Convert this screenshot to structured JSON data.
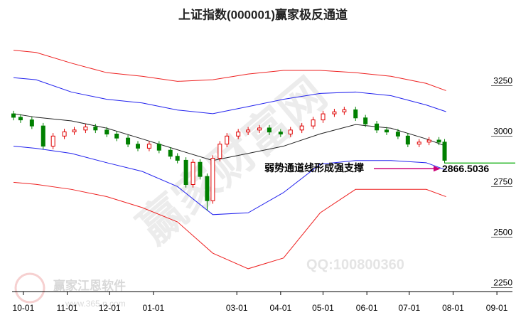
{
  "chart_data": {
    "type": "candlestick",
    "title": "上证指数(000001)赢家极反通道",
    "xlim": [
      -8,
      346
    ],
    "ylim": [
      2230,
      3540
    ],
    "xticks": [
      {
        "value": 0,
        "label": "10-01"
      },
      {
        "value": 31,
        "label": "11-01"
      },
      {
        "value": 61,
        "label": "12-01"
      },
      {
        "value": 92,
        "label": "01-01"
      },
      {
        "value": 151,
        "label": "03-01"
      },
      {
        "value": 182,
        "label": "04-01"
      },
      {
        "value": 212,
        "label": "05-01"
      },
      {
        "value": 243,
        "label": "06-01"
      },
      {
        "value": 273,
        "label": "07-01"
      },
      {
        "value": 304,
        "label": "08-01"
      },
      {
        "value": 335,
        "label": "09-01"
      }
    ],
    "yticks": [
      2250,
      2500,
      2750,
      3000,
      3250
    ],
    "grid": false,
    "up_color": "#e00000",
    "down_color": "#008000",
    "candles": {
      "x": [
        -7,
        -2,
        6,
        14,
        21,
        29,
        36,
        44,
        51,
        59,
        66,
        74,
        81,
        89,
        96,
        104,
        109,
        115,
        120,
        125,
        130,
        134,
        139,
        144,
        152,
        159,
        167,
        174,
        182,
        189,
        197,
        205,
        212,
        220,
        227,
        235,
        242,
        250,
        257,
        265,
        272,
        280,
        287,
        294,
        298
      ],
      "open": [
        3110,
        3093,
        3080,
        3050,
        2950,
        3000,
        3021,
        3030,
        3045,
        3030,
        3010,
        2990,
        2960,
        2940,
        2960,
        2930,
        2900,
        2880,
        2760,
        2870,
        2800,
        2680,
        2890,
        2960,
        3000,
        3020,
        3030,
        3040,
        3020,
        3010,
        3030,
        3050,
        3080,
        3110,
        3120,
        3130,
        3090,
        3060,
        3030,
        3020,
        3000,
        2960,
        2970,
        2980,
        2970
      ],
      "close": [
        3093,
        3080,
        3050,
        2950,
        3000,
        3021,
        3030,
        3045,
        3030,
        3010,
        2990,
        2960,
        2940,
        2960,
        2930,
        2900,
        2880,
        2760,
        2870,
        2800,
        2680,
        2890,
        2960,
        3000,
        3020,
        3030,
        3040,
        3020,
        3010,
        3030,
        3050,
        3080,
        3110,
        3120,
        3130,
        3090,
        3060,
        3030,
        3020,
        3000,
        2960,
        2970,
        2980,
        2970,
        2880
      ],
      "high": [
        3125,
        3108,
        3095,
        3065,
        3015,
        3036,
        3045,
        3060,
        3060,
        3045,
        3025,
        3005,
        2975,
        2975,
        2975,
        2945,
        2915,
        2895,
        2885,
        2885,
        2815,
        2905,
        2975,
        3015,
        3035,
        3045,
        3055,
        3055,
        3035,
        3045,
        3065,
        3095,
        3125,
        3135,
        3145,
        3145,
        3105,
        3075,
        3045,
        3035,
        3015,
        2985,
        2995,
        2995,
        2985
      ],
      "low": [
        3078,
        3065,
        3035,
        2935,
        2935,
        2985,
        3006,
        3015,
        3015,
        2995,
        2975,
        2945,
        2925,
        2925,
        2915,
        2885,
        2865,
        2745,
        2745,
        2785,
        2630,
        2665,
        2875,
        2945,
        2985,
        3005,
        3015,
        3005,
        2995,
        2995,
        3015,
        3035,
        3065,
        3095,
        3105,
        3075,
        3045,
        3015,
        3005,
        2985,
        2945,
        2945,
        2955,
        2955,
        2865
      ]
    },
    "line_x": [
      -7,
      9,
      34,
      59,
      84,
      109,
      134,
      159,
      184,
      210,
      235,
      260,
      285,
      299
    ],
    "series": [
      {
        "name": "upper-red",
        "color": "#ee2222",
        "values": [
          3425,
          3414,
          3361,
          3314,
          3296,
          3271,
          3279,
          3307,
          3325,
          3325,
          3314,
          3296,
          3261,
          3225
        ]
      },
      {
        "name": "upper-blue",
        "color": "#2222ee",
        "values": [
          3289,
          3279,
          3218,
          3182,
          3164,
          3129,
          3111,
          3146,
          3182,
          3211,
          3218,
          3200,
          3154,
          3121
        ]
      },
      {
        "name": "middle",
        "color": "#222222",
        "values": [
          3111,
          3093,
          3075,
          3039,
          2986,
          2932,
          2879,
          2914,
          2950,
          3011,
          3057,
          3039,
          2986,
          2950
        ]
      },
      {
        "name": "lower-blue",
        "color": "#2222ee",
        "values": [
          2950,
          2939,
          2914,
          2868,
          2825,
          2750,
          2611,
          2620,
          2720,
          2861,
          2879,
          2879,
          2868,
          2832
        ]
      },
      {
        "name": "lower-red",
        "color": "#ee2222",
        "values": [
          2771,
          2761,
          2736,
          2700,
          2646,
          2575,
          2420,
          2343,
          2396,
          2620,
          2736,
          2736,
          2736,
          2700
        ]
      }
    ],
    "support_value": 2866.5036,
    "support_color": "#00aa00",
    "annotation": "弱势通道线形成强支撑",
    "arrow_color": "#cc0077",
    "watermarks": [
      "赢家财富网",
      "QQ:100800360",
      "赢家江恩软件",
      "www.365.n.com"
    ]
  }
}
